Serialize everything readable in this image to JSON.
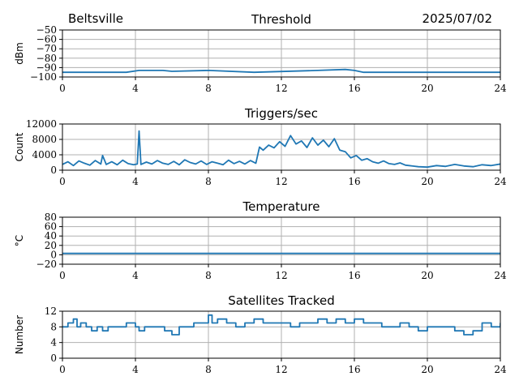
{
  "header": {
    "site": "Beltsville",
    "date": "2025/07/02"
  },
  "colors": {
    "line": "#1f77b4",
    "grid": "#b0b0b0",
    "axis": "#000000"
  },
  "chart_data": [
    {
      "type": "line",
      "title": "Threshold",
      "ylabel": "dBm",
      "xlim": [
        0,
        24
      ],
      "ylim": [
        -100,
        -50
      ],
      "xticks": [
        "0",
        "4",
        "8",
        "12",
        "16",
        "20",
        "24"
      ],
      "yticks": [
        "−100",
        "−90",
        "−80",
        "−70",
        "−60",
        "−50"
      ],
      "grid": true,
      "series": [
        {
          "x": [
            0,
            1.5,
            3.5,
            4.2,
            5.5,
            6,
            8,
            10.5,
            14,
            15.5,
            16,
            16.5,
            18.5,
            24
          ],
          "y": [
            -95,
            -95,
            -95,
            -93,
            -93,
            -94,
            -93,
            -95,
            -93,
            -92,
            -93,
            -95,
            -95,
            -95
          ]
        }
      ]
    },
    {
      "type": "line",
      "title": "Triggers/sec",
      "ylabel": "Count",
      "xlim": [
        0,
        24
      ],
      "ylim": [
        0,
        12000
      ],
      "xticks": [
        "0",
        "4",
        "8",
        "12",
        "16",
        "20",
        "24"
      ],
      "yticks": [
        "0",
        "4000",
        "8000",
        "12000"
      ],
      "grid": true,
      "series": [
        {
          "x": [
            0,
            0.3,
            0.6,
            0.9,
            1.2,
            1.5,
            1.8,
            2.1,
            2.2,
            2.4,
            2.7,
            3.0,
            3.3,
            3.6,
            3.9,
            4.1,
            4.2,
            4.3,
            4.6,
            4.9,
            5.2,
            5.5,
            5.8,
            6.1,
            6.4,
            6.7,
            7.0,
            7.3,
            7.6,
            7.9,
            8.2,
            8.5,
            8.8,
            9.1,
            9.4,
            9.7,
            10.0,
            10.3,
            10.6,
            10.8,
            11.0,
            11.3,
            11.6,
            11.9,
            12.2,
            12.5,
            12.8,
            13.1,
            13.4,
            13.7,
            14.0,
            14.3,
            14.6,
            14.9,
            15.2,
            15.5,
            15.8,
            16.1,
            16.4,
            16.7,
            17.0,
            17.3,
            17.6,
            17.9,
            18.2,
            18.5,
            18.8,
            19.0,
            19.5,
            20.0,
            20.5,
            21.0,
            21.5,
            22.0,
            22.5,
            23.0,
            23.5,
            24.0
          ],
          "y": [
            1500,
            2200,
            1200,
            2400,
            1800,
            1300,
            2500,
            1600,
            3800,
            1500,
            2200,
            1400,
            2600,
            1700,
            1400,
            1600,
            10200,
            1500,
            2100,
            1600,
            2500,
            1800,
            1500,
            2300,
            1400,
            2700,
            2000,
            1600,
            2400,
            1500,
            2200,
            1800,
            1400,
            2600,
            1700,
            2300,
            1600,
            2500,
            1800,
            6000,
            5200,
            6500,
            5800,
            7400,
            6200,
            9000,
            6800,
            7600,
            5900,
            8400,
            6500,
            7800,
            6100,
            8200,
            5200,
            4800,
            3200,
            3800,
            2600,
            3000,
            2200,
            1800,
            2400,
            1700,
            1500,
            1900,
            1300,
            1200,
            900,
            800,
            1200,
            1000,
            1500,
            1100,
            900,
            1400,
            1200,
            1600
          ]
        }
      ]
    },
    {
      "type": "line",
      "title": "Temperature",
      "ylabel": "°C",
      "xlim": [
        0,
        24
      ],
      "ylim": [
        -20,
        80
      ],
      "xticks": [
        "0",
        "4",
        "8",
        "12",
        "16",
        "20",
        "24"
      ],
      "yticks": [
        "−20",
        "0",
        "20",
        "40",
        "60",
        "80"
      ],
      "grid": true,
      "series": [
        {
          "x": [
            0,
            24
          ],
          "y": [
            3,
            3
          ]
        }
      ]
    },
    {
      "type": "line",
      "title": "Satellites Tracked",
      "ylabel": "Number",
      "xlim": [
        0,
        24
      ],
      "ylim": [
        0,
        12
      ],
      "xticks": [
        "0",
        "4",
        "8",
        "12",
        "16",
        "20",
        "24"
      ],
      "yticks": [
        "0",
        "4",
        "8",
        "12"
      ],
      "grid": true,
      "series": [
        {
          "step": true,
          "x": [
            0,
            0.3,
            0.6,
            0.8,
            1.0,
            1.3,
            1.6,
            1.9,
            2.2,
            2.5,
            2.8,
            3.2,
            3.5,
            4.0,
            4.2,
            4.5,
            5.0,
            5.6,
            6.0,
            6.4,
            6.8,
            7.2,
            7.6,
            8.0,
            8.2,
            8.5,
            9.0,
            9.5,
            10.0,
            10.5,
            11.0,
            11.5,
            12.0,
            12.5,
            13.0,
            13.5,
            14.0,
            14.5,
            15.0,
            15.5,
            16.0,
            16.5,
            17.0,
            17.5,
            18.0,
            18.5,
            19.0,
            19.5,
            20.0,
            20.5,
            21.0,
            21.5,
            22.0,
            22.5,
            23.0,
            23.5,
            24.0
          ],
          "y": [
            8,
            9,
            10,
            8,
            9,
            8,
            7,
            8,
            7,
            8,
            8,
            8,
            9,
            8,
            7,
            8,
            8,
            7,
            6,
            8,
            8,
            9,
            9,
            11,
            9,
            10,
            9,
            8,
            9,
            10,
            9,
            9,
            9,
            8,
            9,
            9,
            10,
            9,
            10,
            9,
            10,
            9,
            9,
            8,
            8,
            9,
            8,
            7,
            8,
            8,
            8,
            7,
            6,
            7,
            9,
            8,
            9
          ]
        }
      ]
    }
  ]
}
